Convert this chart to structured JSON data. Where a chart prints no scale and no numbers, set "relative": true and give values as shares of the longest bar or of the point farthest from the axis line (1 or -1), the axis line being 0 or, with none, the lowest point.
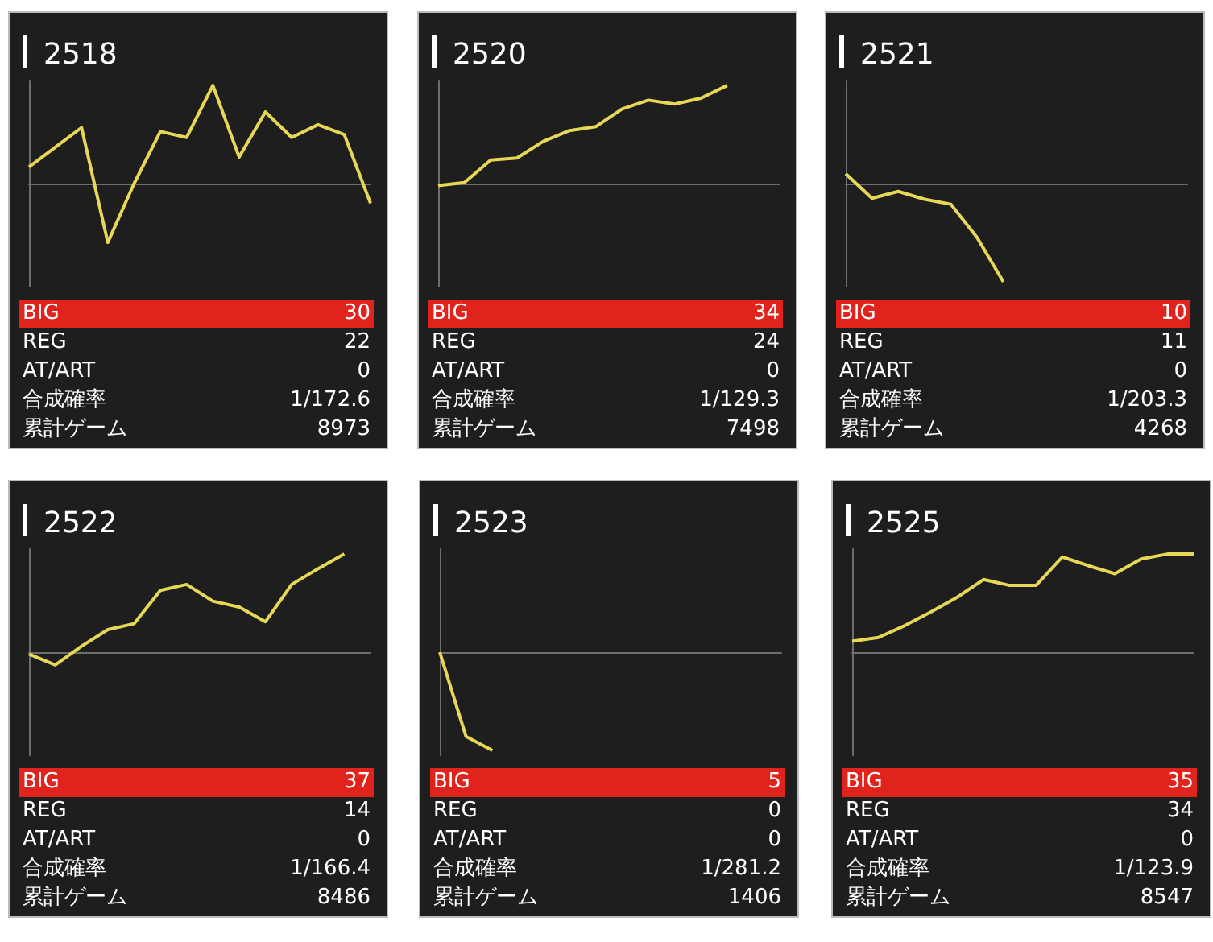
{
  "chart_data": [
    {
      "type": "line",
      "title": "2518",
      "relative": true,
      "marker": "none",
      "color": "#e6d856",
      "categories": [
        null,
        null,
        null,
        null,
        null,
        null,
        null,
        null,
        null,
        null,
        null,
        null,
        null,
        null
      ],
      "values": [
        0.17,
        0.37,
        0.57,
        -0.6,
        0,
        0.53,
        0.47,
        1,
        0.27,
        0.73,
        0.47,
        0.6,
        0.5,
        -0.2
      ],
      "annotations": [
        "BIG",
        "30",
        "REG",
        "22",
        "AT/ART",
        "0",
        "合成確率",
        "1/172.6",
        "累計ゲーム",
        "8973"
      ]
    },
    {
      "type": "line",
      "title": "2520",
      "relative": true,
      "marker": "none",
      "color": "#e6d856",
      "categories": [
        null,
        null,
        null,
        null,
        null,
        null,
        null,
        null,
        null,
        null,
        null,
        null,
        null,
        null
      ],
      "values": [
        -0.02,
        0.01,
        0.24,
        0.26,
        0.43,
        0.54,
        0.58,
        0.76,
        0.85,
        0.81,
        0.87,
        1,
        null,
        null
      ],
      "annotations": [
        "BIG",
        "34",
        "REG",
        "24",
        "AT/ART",
        "0",
        "合成確率",
        "1/129.3",
        "累計ゲーム",
        "7498"
      ]
    },
    {
      "type": "line",
      "title": "2521",
      "relative": true,
      "marker": "none",
      "color": "#e6d856",
      "categories": [
        null,
        null,
        null,
        null,
        null,
        null,
        null,
        null,
        null,
        null,
        null,
        null,
        null,
        null
      ],
      "values": [
        0.1,
        -0.15,
        -0.08,
        -0.16,
        -0.21,
        -0.55,
        -1,
        null,
        null,
        null,
        null,
        null,
        null,
        null
      ],
      "annotations": [
        "BIG",
        "10",
        "REG",
        "11",
        "AT/ART",
        "0",
        "合成確率",
        "1/203.3",
        "累計ゲーム",
        "4268"
      ]
    },
    {
      "type": "line",
      "title": "2522",
      "relative": true,
      "marker": "none",
      "color": "#e6d856",
      "categories": [
        null,
        null,
        null,
        null,
        null,
        null,
        null,
        null,
        null,
        null,
        null,
        null,
        null,
        null
      ],
      "values": [
        -0.02,
        -0.13,
        0.06,
        0.23,
        0.29,
        0.63,
        0.69,
        0.52,
        0.46,
        0.31,
        0.69,
        0.85,
        1,
        null
      ],
      "annotations": [
        "BIG",
        "37",
        "REG",
        "14",
        "AT/ART",
        "0",
        "合成確率",
        "1/166.4",
        "累計ゲーム",
        "8486"
      ]
    },
    {
      "type": "line",
      "title": "2523",
      "relative": true,
      "marker": "none",
      "color": "#e6d856",
      "categories": [
        null,
        null,
        null,
        null,
        null,
        null,
        null,
        null,
        null,
        null,
        null,
        null,
        null,
        null
      ],
      "values": [
        0,
        -0.86,
        -1,
        null,
        null,
        null,
        null,
        null,
        null,
        null,
        null,
        null,
        null,
        null
      ],
      "annotations": [
        "BIG",
        "5",
        "REG",
        "0",
        "AT/ART",
        "0",
        "合成確率",
        "1/281.2",
        "累計ゲーム",
        "1406"
      ]
    },
    {
      "type": "line",
      "title": "2525",
      "relative": true,
      "marker": "none",
      "color": "#e6d856",
      "categories": [
        null,
        null,
        null,
        null,
        null,
        null,
        null,
        null,
        null,
        null,
        null,
        null,
        null,
        null
      ],
      "values": [
        0.11,
        0.15,
        0.27,
        0.41,
        0.56,
        0.74,
        0.68,
        0.68,
        0.97,
        0.88,
        0.8,
        0.95,
        1,
        1
      ],
      "annotations": [
        "BIG",
        "35",
        "REG",
        "34",
        "AT/ART",
        "0",
        "合成確率",
        "1/123.9",
        "累計ゲーム",
        "8547"
      ]
    }
  ]
}
